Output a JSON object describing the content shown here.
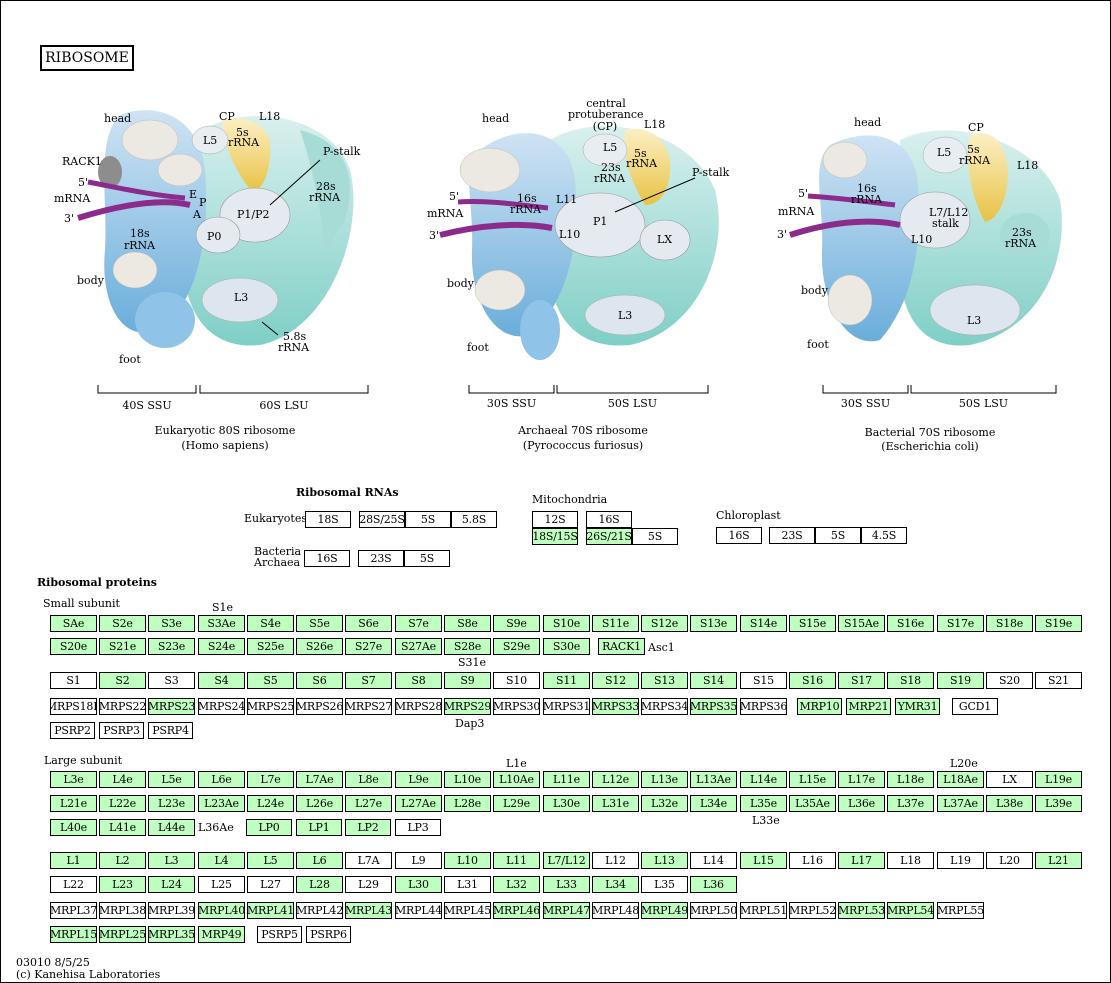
{
  "title": "RIBOSOME",
  "footer": {
    "id_date": "03010 8/5/25",
    "copyright": "(c) Kanehisa Laboratories"
  },
  "colors": {
    "present": "#bfffbf",
    "absent": "#ffffff"
  },
  "ribosomes": [
    {
      "name": "Eukaryotic 80S ribosome",
      "species": "(Homo sapiens)",
      "ssu": "40S SSU",
      "lsu": "60S LSU",
      "labels": [
        "head",
        "CP",
        "L18",
        "L5",
        "5s",
        "rRNA",
        "RACK1",
        "5'",
        "mRNA",
        "E",
        "P",
        "A",
        "3'",
        "P-stalk",
        "28s",
        "rRNA",
        "18s",
        "rRNA",
        "P0",
        "P1/P2",
        "body",
        "L3",
        "foot",
        "5.8s",
        "rRNA"
      ]
    },
    {
      "name": "Archaeal 70S ribosome",
      "species": "(Pyrococcus furiosus)",
      "ssu": "30S SSU",
      "lsu": "50S LSU",
      "labels": [
        "head",
        "central",
        "protuberance",
        "(CP)",
        "L18",
        "L5",
        "5s",
        "rRNA",
        "23s",
        "rRNA",
        "P-stalk",
        "5'",
        "mRNA",
        "16s",
        "rRNA",
        "L11",
        "3'",
        "P1",
        "L10",
        "LX",
        "body",
        "L3",
        "foot"
      ]
    },
    {
      "name": "Bacterial 70S ribosome",
      "species": "(Escherichia coli)",
      "ssu": "30S SSU",
      "lsu": "50S LSU",
      "labels": [
        "head",
        "CP",
        "L5",
        "5s",
        "rRNA",
        "L18",
        "5'",
        "16s",
        "rRNA",
        "mRNA",
        "L7/L12",
        "stalk",
        "3'",
        "L10",
        "23s",
        "rRNA",
        "body",
        "L3",
        "foot"
      ]
    }
  ],
  "rna": {
    "heading": "Ribosomal RNAs",
    "eukaryotes_label": "Eukaryotes",
    "eukaryotes": [
      {
        "t": "18S",
        "g": false
      },
      {
        "t": "28S/25S",
        "g": false
      },
      {
        "t": "5S",
        "g": false
      },
      {
        "t": "5.8S",
        "g": false
      }
    ],
    "bacteria_label_1": "Bacteria",
    "bacteria_label_2": "Archaea",
    "bacteria": [
      {
        "t": "16S",
        "g": false
      },
      {
        "t": "23S",
        "g": false
      },
      {
        "t": "5S",
        "g": false
      }
    ],
    "mito_label": "Mitochondria",
    "mito": [
      {
        "t": "12S",
        "g": false
      },
      {
        "t": "16S",
        "g": false
      },
      {
        "t": "18S/15S",
        "g": true
      },
      {
        "t": "26S/21S",
        "g": true
      },
      {
        "t": "5S",
        "g": false
      }
    ],
    "chloro_label": "Chloroplast",
    "chloro": [
      {
        "t": "16S",
        "g": false
      },
      {
        "t": "23S",
        "g": false
      },
      {
        "t": "5S",
        "g": false
      },
      {
        "t": "4.5S",
        "g": false
      }
    ]
  },
  "proteins": {
    "heading": "Ribosomal proteins",
    "small_label": "Small subunit",
    "large_label": "Large subunit",
    "notes": {
      "s1e": "S1e",
      "asc1": "Asc1",
      "s31e": "S31e",
      "dap3": "Dap3",
      "l1e": "L1e",
      "l20e": "L20e",
      "l36ae": "L36Ae",
      "l33e": "L33e"
    },
    "rows": [
      [
        [
          "SAe",
          1
        ],
        [
          "S2e",
          1
        ],
        [
          "S3e",
          1
        ],
        [
          "S3Ae",
          1
        ],
        [
          "S4e",
          1
        ],
        [
          "S5e",
          1
        ],
        [
          "S6e",
          1
        ],
        [
          "S7e",
          1
        ],
        [
          "S8e",
          1
        ],
        [
          "S9e",
          1
        ],
        [
          "S10e",
          1
        ],
        [
          "S11e",
          1
        ],
        [
          "S12e",
          1
        ],
        [
          "S13e",
          1
        ],
        [
          "S14e",
          1
        ],
        [
          "S15e",
          1
        ],
        [
          "S15Ae",
          1
        ],
        [
          "S16e",
          1
        ],
        [
          "S17e",
          1
        ],
        [
          "S18e",
          1
        ],
        [
          "S19e",
          1
        ]
      ],
      [
        [
          "S20e",
          1
        ],
        [
          "S21e",
          1
        ],
        [
          "S23e",
          1
        ],
        [
          "S24e",
          1
        ],
        [
          "S25e",
          1
        ],
        [
          "S26e",
          1
        ],
        [
          "S27e",
          1
        ],
        [
          "S27Ae",
          1
        ],
        [
          "S28e",
          1
        ],
        [
          "S29e",
          1
        ],
        [
          "S30e",
          1
        ],
        [
          "RACK1",
          1
        ]
      ],
      [
        [
          "S1",
          0
        ],
        [
          "S2",
          1
        ],
        [
          "S3",
          0
        ],
        [
          "S4",
          1
        ],
        [
          "S5",
          1
        ],
        [
          "S6",
          1
        ],
        [
          "S7",
          1
        ],
        [
          "S8",
          1
        ],
        [
          "S9",
          1
        ],
        [
          "S10",
          0
        ],
        [
          "S11",
          1
        ],
        [
          "S12",
          1
        ],
        [
          "S13",
          1
        ],
        [
          "S14",
          1
        ],
        [
          "S15",
          0
        ],
        [
          "S16",
          1
        ],
        [
          "S17",
          1
        ],
        [
          "S18",
          1
        ],
        [
          "S19",
          1
        ],
        [
          "S20",
          0
        ],
        [
          "S21",
          0
        ]
      ],
      [
        [
          "MRPS18B",
          0
        ],
        [
          "MRPS22",
          0
        ],
        [
          "MRPS23",
          1
        ],
        [
          "MRPS24",
          0
        ],
        [
          "MRPS25",
          0
        ],
        [
          "MRPS26",
          0
        ],
        [
          "MRPS27",
          0
        ],
        [
          "MRPS28",
          0
        ],
        [
          "MRPS29",
          1
        ],
        [
          "MRPS30",
          0
        ],
        [
          "MRPS31",
          0
        ],
        [
          "MRPS33",
          1
        ],
        [
          "MRPS34",
          0
        ],
        [
          "MRPS35",
          1
        ],
        [
          "MRPS36",
          0
        ],
        [
          "MRP10",
          1
        ],
        [
          "MRP21",
          1
        ],
        [
          "YMR31",
          1
        ],
        [
          "GCD1",
          0
        ]
      ],
      [
        [
          "PSRP2",
          0
        ],
        [
          "PSRP3",
          0
        ],
        [
          "PSRP4",
          0
        ]
      ],
      [
        [
          "L3e",
          1
        ],
        [
          "L4e",
          1
        ],
        [
          "L5e",
          1
        ],
        [
          "L6e",
          1
        ],
        [
          "L7e",
          1
        ],
        [
          "L7Ae",
          1
        ],
        [
          "L8e",
          1
        ],
        [
          "L9e",
          1
        ],
        [
          "L10e",
          1
        ],
        [
          "L10Ae",
          1
        ],
        [
          "L11e",
          1
        ],
        [
          "L12e",
          1
        ],
        [
          "L13e",
          1
        ],
        [
          "L13Ae",
          1
        ],
        [
          "L14e",
          1
        ],
        [
          "L15e",
          1
        ],
        [
          "L17e",
          1
        ],
        [
          "L18e",
          1
        ],
        [
          "L18Ae",
          1
        ],
        [
          "LX",
          0
        ],
        [
          "L19e",
          1
        ]
      ],
      [
        [
          "L21e",
          1
        ],
        [
          "L22e",
          1
        ],
        [
          "L23e",
          1
        ],
        [
          "L23Ae",
          1
        ],
        [
          "L24e",
          1
        ],
        [
          "L26e",
          1
        ],
        [
          "L27e",
          1
        ],
        [
          "L27Ae",
          1
        ],
        [
          "L28e",
          1
        ],
        [
          "L29e",
          1
        ],
        [
          "L30e",
          1
        ],
        [
          "L31e",
          1
        ],
        [
          "L32e",
          1
        ],
        [
          "L34e",
          1
        ],
        [
          "L35e",
          1
        ],
        [
          "L35Ae",
          1
        ],
        [
          "L36e",
          1
        ],
        [
          "L37e",
          1
        ],
        [
          "L37Ae",
          1
        ],
        [
          "L38e",
          1
        ],
        [
          "L39e",
          1
        ]
      ],
      [
        [
          "L40e",
          1
        ],
        [
          "L41e",
          1
        ],
        [
          "L44e",
          1
        ],
        [
          "LP0",
          1
        ],
        [
          "LP1",
          1
        ],
        [
          "LP2",
          1
        ],
        [
          "LP3",
          0
        ]
      ],
      [
        [
          "L1",
          1
        ],
        [
          "L2",
          1
        ],
        [
          "L3",
          1
        ],
        [
          "L4",
          1
        ],
        [
          "L5",
          1
        ],
        [
          "L6",
          1
        ],
        [
          "L7A",
          0
        ],
        [
          "L9",
          0
        ],
        [
          "L10",
          1
        ],
        [
          "L11",
          1
        ],
        [
          "L7/L12",
          1
        ],
        [
          "L12",
          0
        ],
        [
          "L13",
          1
        ],
        [
          "L14",
          0
        ],
        [
          "L15",
          1
        ],
        [
          "L16",
          0
        ],
        [
          "L17",
          1
        ],
        [
          "L18",
          0
        ],
        [
          "L19",
          0
        ],
        [
          "L20",
          0
        ],
        [
          "L21",
          1
        ]
      ],
      [
        [
          "L22",
          0
        ],
        [
          "L23",
          1
        ],
        [
          "L24",
          1
        ],
        [
          "L25",
          0
        ],
        [
          "L27",
          0
        ],
        [
          "L28",
          1
        ],
        [
          "L29",
          0
        ],
        [
          "L30",
          1
        ],
        [
          "L31",
          0
        ],
        [
          "L32",
          1
        ],
        [
          "L33",
          1
        ],
        [
          "L34",
          1
        ],
        [
          "L35",
          0
        ],
        [
          "L36",
          1
        ]
      ],
      [
        [
          "MRPL37",
          0
        ],
        [
          "MRPL38",
          0
        ],
        [
          "MRPL39",
          0
        ],
        [
          "MRPL40",
          1
        ],
        [
          "MRPL41",
          1
        ],
        [
          "MRPL42",
          0
        ],
        [
          "MRPL43",
          1
        ],
        [
          "MRPL44",
          0
        ],
        [
          "MRPL45",
          0
        ],
        [
          "MRPL46",
          1
        ],
        [
          "MRPL47",
          1
        ],
        [
          "MRPL48",
          0
        ],
        [
          "MRPL49",
          1
        ],
        [
          "MRPL50",
          0
        ],
        [
          "MRPL51",
          0
        ],
        [
          "MRPL52",
          0
        ],
        [
          "MRPL53",
          1
        ],
        [
          "MRPL54",
          1
        ],
        [
          "MRPL55",
          0
        ]
      ],
      [
        [
          "MRPL15",
          1
        ],
        [
          "MRPL25",
          1
        ],
        [
          "MRPL35",
          1
        ],
        [
          "MRP49",
          1
        ],
        [
          "PSRP5",
          0
        ],
        [
          "PSRP6",
          0
        ]
      ]
    ]
  }
}
